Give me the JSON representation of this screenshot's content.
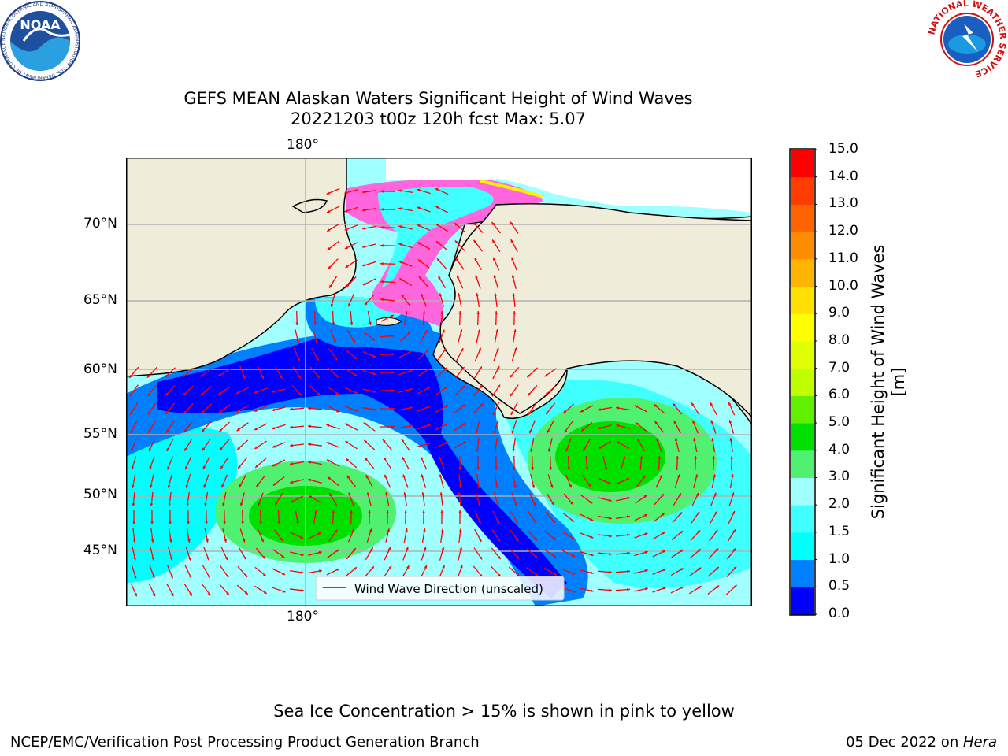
{
  "title": {
    "line1": "GEFS MEAN Alaskan Waters Significant Height of Wind Waves",
    "line2": "20221203 t00z 120h fcst   Max: 5.07"
  },
  "map": {
    "lon_label": "180°",
    "lat_labels": [
      "70°N",
      "65°N",
      "60°N",
      "55°N",
      "50°N",
      "45°N"
    ],
    "legend_label": "Wind Wave Direction (unscaled)",
    "colors": {
      "land": "#efedda",
      "ice_pink": "#ff66dd",
      "ice_yellow": "#fff000",
      "arrow": "#ff0000",
      "grid": "#b0b0b0"
    }
  },
  "colorbar": {
    "label": "Significant Height of Wind Waves [m]",
    "ticks": [
      "15.0",
      "14.0",
      "13.0",
      "12.0",
      "11.0",
      "10.0",
      "9.0",
      "8.0",
      "7.0",
      "6.0",
      "5.0",
      "4.0",
      "3.0",
      "2.0",
      "1.5",
      "1.0",
      "0.5",
      "0.0"
    ],
    "colors": [
      "#0000ff",
      "#0080ff",
      "#00ffff",
      "#40ffff",
      "#a0ffff",
      "#50f070",
      "#00e000",
      "#60f000",
      "#c0ff00",
      "#e0ff00",
      "#ffff00",
      "#ffe000",
      "#ffb400",
      "#ff8c00",
      "#ff6400",
      "#ff3c00",
      "#ff0000"
    ]
  },
  "logos": {
    "noaa": "NOAA",
    "noaa_ring": "NATIONAL OCEANIC AND ATMOSPHERIC ADMINISTRATION · U.S. DEPARTMENT OF COMMERCE",
    "nws_ring": "NATIONAL WEATHER SERVICE"
  },
  "caption": "Sea Ice Concentration > 15% is shown in pink to yellow",
  "footer": {
    "left": "NCEP/EMC/Verification Post Processing Product Generation Branch",
    "right_date": "05 Dec 2022 on ",
    "right_machine": "Hera"
  }
}
